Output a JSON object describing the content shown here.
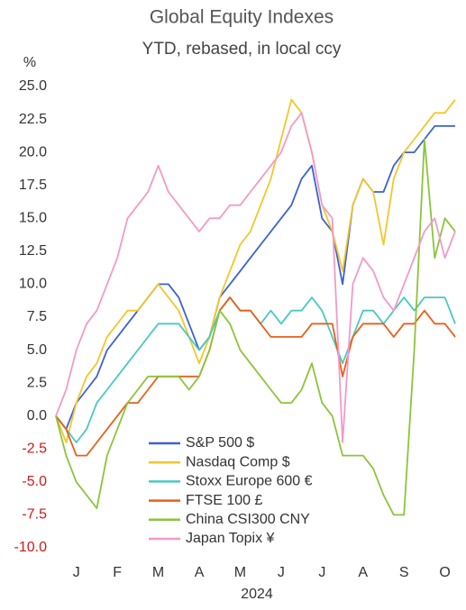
{
  "chart_data": {
    "type": "line",
    "title": "Global Equity Indexes",
    "subtitle": "YTD, rebased, in local ccy",
    "y_label": "%",
    "x_label": "2024",
    "categories": [
      null,
      null,
      "J",
      null,
      null,
      null,
      "F",
      null,
      null,
      null,
      "M",
      null,
      null,
      null,
      "A",
      null,
      null,
      null,
      "M",
      null,
      null,
      null,
      "J",
      null,
      null,
      null,
      "J",
      null,
      null,
      null,
      "A",
      null,
      null,
      null,
      "S",
      null,
      null,
      null,
      "O",
      null
    ],
    "ylim": [
      -10,
      25
    ],
    "yticks": [
      {
        "value": -10,
        "label": "-10.0"
      },
      {
        "value": -7.5,
        "label": "-7.5"
      },
      {
        "value": -5,
        "label": "-5.0"
      },
      {
        "value": -2.5,
        "label": "-2.5"
      },
      {
        "value": 0,
        "label": "0.0"
      },
      {
        "value": 2.5,
        "label": "2.5"
      },
      {
        "value": 5,
        "label": "5.0"
      },
      {
        "value": 7.5,
        "label": "7.5"
      },
      {
        "value": 10,
        "label": "10.0"
      },
      {
        "value": 12.5,
        "label": "12.5"
      },
      {
        "value": 15,
        "label": "15.0"
      },
      {
        "value": 17.5,
        "label": "17.5"
      },
      {
        "value": 20,
        "label": "20.0"
      },
      {
        "value": 22.5,
        "label": "22.5"
      },
      {
        "value": 25,
        "label": "25.0"
      }
    ],
    "negative_tick_color": "#d01818",
    "series": [
      {
        "name": "S&P 500 $",
        "color": "#3b62d4",
        "values": [
          0,
          -1,
          1,
          2,
          3,
          5,
          6,
          7,
          8,
          9,
          10,
          10,
          9,
          7,
          5,
          6,
          9,
          10,
          11,
          12,
          13,
          14,
          15,
          16,
          18,
          19,
          15,
          14,
          10,
          16,
          18,
          17,
          17,
          19,
          20,
          20,
          21,
          22,
          22,
          22
        ]
      },
      {
        "name": "Nasdaq Comp $",
        "color": "#f5c62a",
        "values": [
          0,
          -2,
          1,
          3,
          4,
          6,
          7,
          8,
          8,
          9,
          10,
          9,
          8,
          6,
          4,
          6,
          9,
          11,
          13,
          14,
          16,
          18,
          21,
          24,
          23,
          20,
          16,
          14,
          11,
          16,
          18,
          17,
          13,
          18,
          20,
          21,
          22,
          23,
          23,
          24
        ]
      },
      {
        "name": "Stoxx Europe 600 €",
        "color": "#49c9c0",
        "values": [
          0,
          -1,
          -2,
          -1,
          1,
          2,
          3,
          4,
          5,
          6,
          7,
          7,
          7,
          6,
          5,
          6,
          8,
          9,
          8,
          8,
          7,
          8,
          7,
          8,
          8,
          9,
          8,
          6,
          4,
          6,
          8,
          8,
          7,
          8,
          9,
          8,
          9,
          9,
          9,
          7
        ]
      },
      {
        "name": "FTSE 100 £",
        "color": "#e8601a",
        "values": [
          0,
          -1,
          -3,
          -3,
          -2,
          -1,
          0,
          1,
          1,
          2,
          3,
          3,
          3,
          3,
          3,
          5,
          8,
          9,
          8,
          8,
          7,
          6,
          6,
          6,
          6,
          7,
          7,
          7,
          3,
          6,
          7,
          7,
          7,
          6,
          7,
          7,
          8,
          7,
          7,
          6
        ]
      },
      {
        "name": "China CSI300 CNY",
        "color": "#8cc43a",
        "values": [
          0,
          -3,
          -5,
          -6,
          -7,
          -3,
          -1,
          1,
          2,
          3,
          3,
          3,
          3,
          2,
          3,
          5,
          8,
          7,
          5,
          4,
          3,
          2,
          1,
          1,
          2,
          4,
          1,
          0,
          -3,
          -3,
          -3,
          -4,
          -6,
          -7.5,
          -7.5,
          5,
          21,
          12,
          15,
          14
        ]
      },
      {
        "name": "Japan Topix ¥",
        "color": "#f29ac8",
        "values": [
          0,
          2,
          5,
          7,
          8,
          10,
          12,
          15,
          16,
          17,
          19,
          17,
          16,
          15,
          14,
          15,
          15,
          16,
          16,
          17,
          18,
          19,
          20,
          22,
          23,
          20,
          16,
          15,
          -2,
          10,
          12,
          11,
          9,
          8,
          10,
          12,
          14,
          15,
          12,
          14
        ]
      }
    ]
  }
}
